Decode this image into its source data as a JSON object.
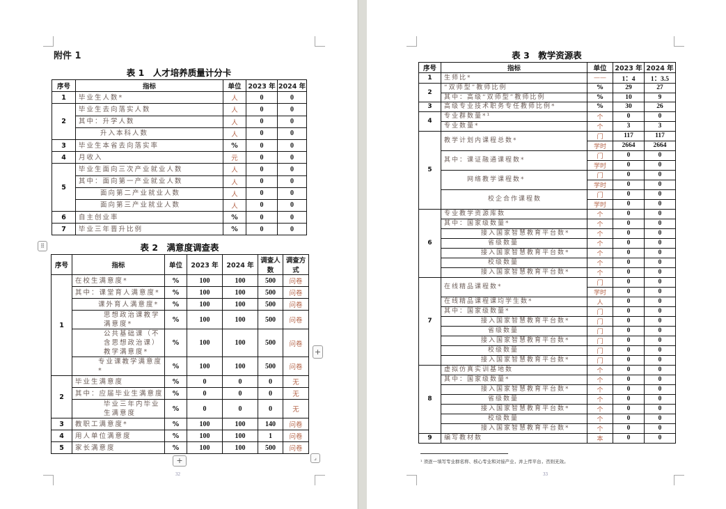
{
  "left_page": {
    "attachment_label": "附件 1",
    "page_number": "32",
    "table1": {
      "title": "表 1　人才培养质量计分卡",
      "headers": [
        "序号",
        "指标",
        "单位",
        "2023 年",
        "2024 年"
      ],
      "groups": [
        {
          "no": "1",
          "items": [
            {
              "label": "毕业生人数*",
              "level": 0,
              "unit": "人",
              "v2023": "0",
              "v2024": "0"
            }
          ]
        },
        {
          "no": "2",
          "items": [
            {
              "label": "毕业生去向落实人数",
              "level": 0,
              "unit": "人",
              "v2023": "0",
              "v2024": "0"
            },
            {
              "label": "其中：升学人数",
              "level": 0,
              "unit": "人",
              "v2023": "0",
              "v2024": "0"
            },
            {
              "label": "升入本科人数",
              "level": 1,
              "unit": "人",
              "v2023": "0",
              "v2024": "0"
            }
          ]
        },
        {
          "no": "3",
          "items": [
            {
              "label": "毕业生本省去向落实率",
              "level": 0,
              "unit": "%",
              "v2023": "0",
              "v2024": "0"
            }
          ]
        },
        {
          "no": "4",
          "items": [
            {
              "label": "月收入",
              "level": 0,
              "unit": "元",
              "v2023": "0",
              "v2024": "0"
            }
          ]
        },
        {
          "no": "5",
          "items": [
            {
              "label": "毕业生面向三次产业就业人数",
              "level": 0,
              "unit": "人",
              "v2023": "0",
              "v2024": "0"
            },
            {
              "label": "其中：面向第一产业就业人数",
              "level": 0,
              "unit": "人",
              "v2023": "0",
              "v2024": "0"
            },
            {
              "label": "面向第二产业就业人数",
              "level": 1,
              "unit": "人",
              "v2023": "0",
              "v2024": "0"
            },
            {
              "label": "面向第三产业就业人数",
              "level": 1,
              "unit": "人",
              "v2023": "0",
              "v2024": "0"
            }
          ]
        },
        {
          "no": "6",
          "items": [
            {
              "label": "自主创业率",
              "level": 0,
              "unit": "%",
              "v2023": "0",
              "v2024": "0"
            }
          ]
        },
        {
          "no": "7",
          "items": [
            {
              "label": "毕业三年晋升比例",
              "level": 0,
              "unit": "%",
              "v2023": "0",
              "v2024": "0"
            }
          ]
        }
      ]
    },
    "table2": {
      "title": "表 2　满意度调查表",
      "headers": [
        "序号",
        "指标",
        "单位",
        "2023 年",
        "2024 年",
        "调查人数",
        "调查方式"
      ],
      "groups": [
        {
          "no": "1",
          "items": [
            {
              "label": "在校生满意度*",
              "level": 0,
              "unit": "%",
              "v2023": "100",
              "v2024": "100",
              "count": "500",
              "method": "问卷"
            },
            {
              "label": "其中：课堂育人满意度*",
              "level": 0,
              "unit": "%",
              "v2023": "100",
              "v2024": "100",
              "count": "500",
              "method": "问卷"
            },
            {
              "label": "课外育人满意度*",
              "level": 1,
              "unit": "%",
              "v2023": "100",
              "v2024": "100",
              "count": "500",
              "method": "问卷"
            },
            {
              "label": "思想政治课教学满意度*",
              "level": 2,
              "unit": "%",
              "v2023": "100",
              "v2024": "100",
              "count": "500",
              "method": "问卷"
            },
            {
              "label": "公共基础课（不含思想政治课）教学满意度*",
              "level": 2,
              "unit": "%",
              "v2023": "100",
              "v2024": "100",
              "count": "500",
              "method": "问卷"
            },
            {
              "label": "专业课教学满意度*",
              "level": 1,
              "unit": "%",
              "v2023": "100",
              "v2024": "100",
              "count": "500",
              "method": "问卷"
            }
          ]
        },
        {
          "no": "2",
          "items": [
            {
              "label": "毕业生满意度",
              "level": 0,
              "unit": "%",
              "v2023": "0",
              "v2024": "0",
              "count": "0",
              "method": "无"
            },
            {
              "label": "其中：应届毕业生满意度",
              "level": 0,
              "unit": "%",
              "v2023": "0",
              "v2024": "0",
              "count": "0",
              "method": "无"
            },
            {
              "label": "毕业三年内毕业生满意度",
              "level": 2,
              "unit": "%",
              "v2023": "0",
              "v2024": "0",
              "count": "0",
              "method": "无"
            }
          ]
        },
        {
          "no": "3",
          "items": [
            {
              "label": "教职工满意度*",
              "level": 0,
              "unit": "%",
              "v2023": "100",
              "v2024": "100",
              "count": "140",
              "method": "问卷"
            }
          ]
        },
        {
          "no": "4",
          "items": [
            {
              "label": "用人单位满意度",
              "level": 0,
              "unit": "%",
              "v2023": "100",
              "v2024": "100",
              "count": "1",
              "method": "问卷"
            }
          ]
        },
        {
          "no": "5",
          "items": [
            {
              "label": "家长满意度",
              "level": 0,
              "unit": "%",
              "v2023": "100",
              "v2024": "100",
              "count": "500",
              "method": "问卷"
            }
          ]
        }
      ]
    }
  },
  "right_page": {
    "page_number": "33",
    "footnote": "¹ 须逐一填写专业群名称、核心专业和对接产业，并上传平台，否则无效。",
    "table3": {
      "title": "表 3　教学资源表",
      "headers": [
        "序号",
        "指标",
        "单位",
        "2023 年",
        "2024 年"
      ],
      "groups": [
        {
          "no": "1",
          "items": [
            {
              "label": "生师比*",
              "level": 0,
              "units": [
                {
                  "unit": "——",
                  "v2023": "1：4",
                  "v2024": "1：3.5"
                }
              ]
            }
          ]
        },
        {
          "no": "2",
          "items": [
            {
              "label": "“双师型”教师比例",
              "level": 0,
              "units": [
                {
                  "unit": "%",
                  "v2023": "29",
                  "v2024": "27"
                }
              ]
            },
            {
              "label": "其中：高级“双师型”教师比例",
              "level": 0,
              "units": [
                {
                  "unit": "%",
                  "v2023": "10",
                  "v2024": "9"
                }
              ]
            }
          ]
        },
        {
          "no": "3",
          "items": [
            {
              "label": "高级专业技术职务专任教师比例*",
              "level": 0,
              "units": [
                {
                  "unit": "%",
                  "v2023": "30",
                  "v2024": "26"
                }
              ]
            }
          ]
        },
        {
          "no": "4",
          "items": [
            {
              "label": "专业群数量*¹",
              "level": 0,
              "units": [
                {
                  "unit": "个",
                  "v2023": "0",
                  "v2024": "0"
                }
              ]
            },
            {
              "label": "专业数量*",
              "level": 0,
              "units": [
                {
                  "unit": "个",
                  "v2023": "3",
                  "v2024": "3"
                }
              ]
            }
          ]
        },
        {
          "no": "5",
          "items": [
            {
              "label": "教学计划内课程总数*",
              "level": 0,
              "units": [
                {
                  "unit": "门",
                  "v2023": "117",
                  "v2024": "117"
                },
                {
                  "unit": "学时",
                  "v2023": "2664",
                  "v2024": "2664"
                }
              ]
            },
            {
              "label": "其中：课证融通课程数*",
              "level": 0,
              "units": [
                {
                  "unit": "门",
                  "v2023": "0",
                  "v2024": "0"
                },
                {
                  "unit": "学时",
                  "v2023": "0",
                  "v2024": "0"
                }
              ]
            },
            {
              "label": "网络教学课程数*",
              "level": 1,
              "units": [
                {
                  "unit": "门",
                  "v2023": "0",
                  "v2024": "0"
                },
                {
                  "unit": "学时",
                  "v2023": "0",
                  "v2024": "0"
                }
              ]
            },
            {
              "label": "校企合作课程数",
              "level": 3,
              "units": [
                {
                  "unit": "门",
                  "v2023": "0",
                  "v2024": "0"
                },
                {
                  "unit": "学时",
                  "v2023": "0",
                  "v2024": "0"
                }
              ]
            }
          ]
        },
        {
          "no": "6",
          "items": [
            {
              "label": "专业教学资源库数",
              "level": 0,
              "units": [
                {
                  "unit": "个",
                  "v2023": "0",
                  "v2024": "0"
                }
              ]
            },
            {
              "label": "其中：国家级数量*",
              "level": 0,
              "units": [
                {
                  "unit": "个",
                  "v2023": "0",
                  "v2024": "0"
                }
              ]
            },
            {
              "label": "接入国家智慧教育平台数*",
              "level": 2,
              "units": [
                {
                  "unit": "个",
                  "v2023": "0",
                  "v2024": "0"
                }
              ]
            },
            {
              "label": "省级数量",
              "level": 3,
              "units": [
                {
                  "unit": "个",
                  "v2023": "0",
                  "v2024": "0"
                }
              ]
            },
            {
              "label": "接入国家智慧教育平台数*",
              "level": 2,
              "units": [
                {
                  "unit": "个",
                  "v2023": "0",
                  "v2024": "0"
                }
              ]
            },
            {
              "label": "校级数量",
              "level": 3,
              "units": [
                {
                  "unit": "个",
                  "v2023": "0",
                  "v2024": "0"
                }
              ]
            },
            {
              "label": "接入国家智慧教育平台数*",
              "level": 2,
              "units": [
                {
                  "unit": "个",
                  "v2023": "0",
                  "v2024": "0"
                }
              ]
            }
          ]
        },
        {
          "no": "7",
          "items": [
            {
              "label": "在线精品课程数*",
              "level": 0,
              "units": [
                {
                  "unit": "门",
                  "v2023": "0",
                  "v2024": "0"
                },
                {
                  "unit": "学时",
                  "v2023": "0",
                  "v2024": "0"
                }
              ]
            },
            {
              "label": "在线精品课程课均学生数*",
              "level": 0,
              "units": [
                {
                  "unit": "人",
                  "v2023": "0",
                  "v2024": "0"
                }
              ]
            },
            {
              "label": "其中：国家级数量*",
              "level": 0,
              "units": [
                {
                  "unit": "门",
                  "v2023": "0",
                  "v2024": "0"
                }
              ]
            },
            {
              "label": "接入国家智慧教育平台数*",
              "level": 2,
              "units": [
                {
                  "unit": "门",
                  "v2023": "0",
                  "v2024": "0"
                }
              ]
            },
            {
              "label": "省级数量",
              "level": 3,
              "units": [
                {
                  "unit": "门",
                  "v2023": "0",
                  "v2024": "0"
                }
              ]
            },
            {
              "label": "接入国家智慧教育平台数*",
              "level": 2,
              "units": [
                {
                  "unit": "门",
                  "v2023": "0",
                  "v2024": "0"
                }
              ]
            },
            {
              "label": "校级数量",
              "level": 3,
              "units": [
                {
                  "unit": "门",
                  "v2023": "0",
                  "v2024": "0"
                }
              ]
            },
            {
              "label": "接入国家智慧教育平台数*",
              "level": 2,
              "units": [
                {
                  "unit": "门",
                  "v2023": "0",
                  "v2024": "0"
                }
              ]
            }
          ]
        },
        {
          "no": "8",
          "items": [
            {
              "label": "虚拟仿真实训基地数",
              "level": 0,
              "units": [
                {
                  "unit": "个",
                  "v2023": "0",
                  "v2024": "0"
                }
              ]
            },
            {
              "label": "其中：国家级数量*",
              "level": 0,
              "units": [
                {
                  "unit": "个",
                  "v2023": "0",
                  "v2024": "0"
                }
              ]
            },
            {
              "label": "接入国家智慧教育平台数*",
              "level": 2,
              "units": [
                {
                  "unit": "个",
                  "v2023": "0",
                  "v2024": "0"
                }
              ]
            },
            {
              "label": "省级数量",
              "level": 3,
              "units": [
                {
                  "unit": "个",
                  "v2023": "0",
                  "v2024": "0"
                }
              ]
            },
            {
              "label": "接入国家智慧教育平台数*",
              "level": 2,
              "units": [
                {
                  "unit": "个",
                  "v2023": "0",
                  "v2024": "0"
                }
              ]
            },
            {
              "label": "校级数量",
              "level": 3,
              "units": [
                {
                  "unit": "个",
                  "v2023": "0",
                  "v2024": "0"
                }
              ]
            },
            {
              "label": "接入国家智慧教育平台数*",
              "level": 2,
              "units": [
                {
                  "unit": "个",
                  "v2023": "0",
                  "v2024": "0"
                }
              ]
            }
          ]
        },
        {
          "no": "9",
          "items": [
            {
              "label": "编写教材数",
              "level": 0,
              "units": [
                {
                  "unit": "本",
                  "v2023": "0",
                  "v2024": "0"
                }
              ]
            }
          ]
        }
      ]
    }
  },
  "controls": {
    "table_move_icon": "move-handle-icon",
    "add_icon": "plus-icon",
    "resize_icon": "resize-handle-icon",
    "add_symbol": "+",
    "move_symbol": "⠿"
  }
}
